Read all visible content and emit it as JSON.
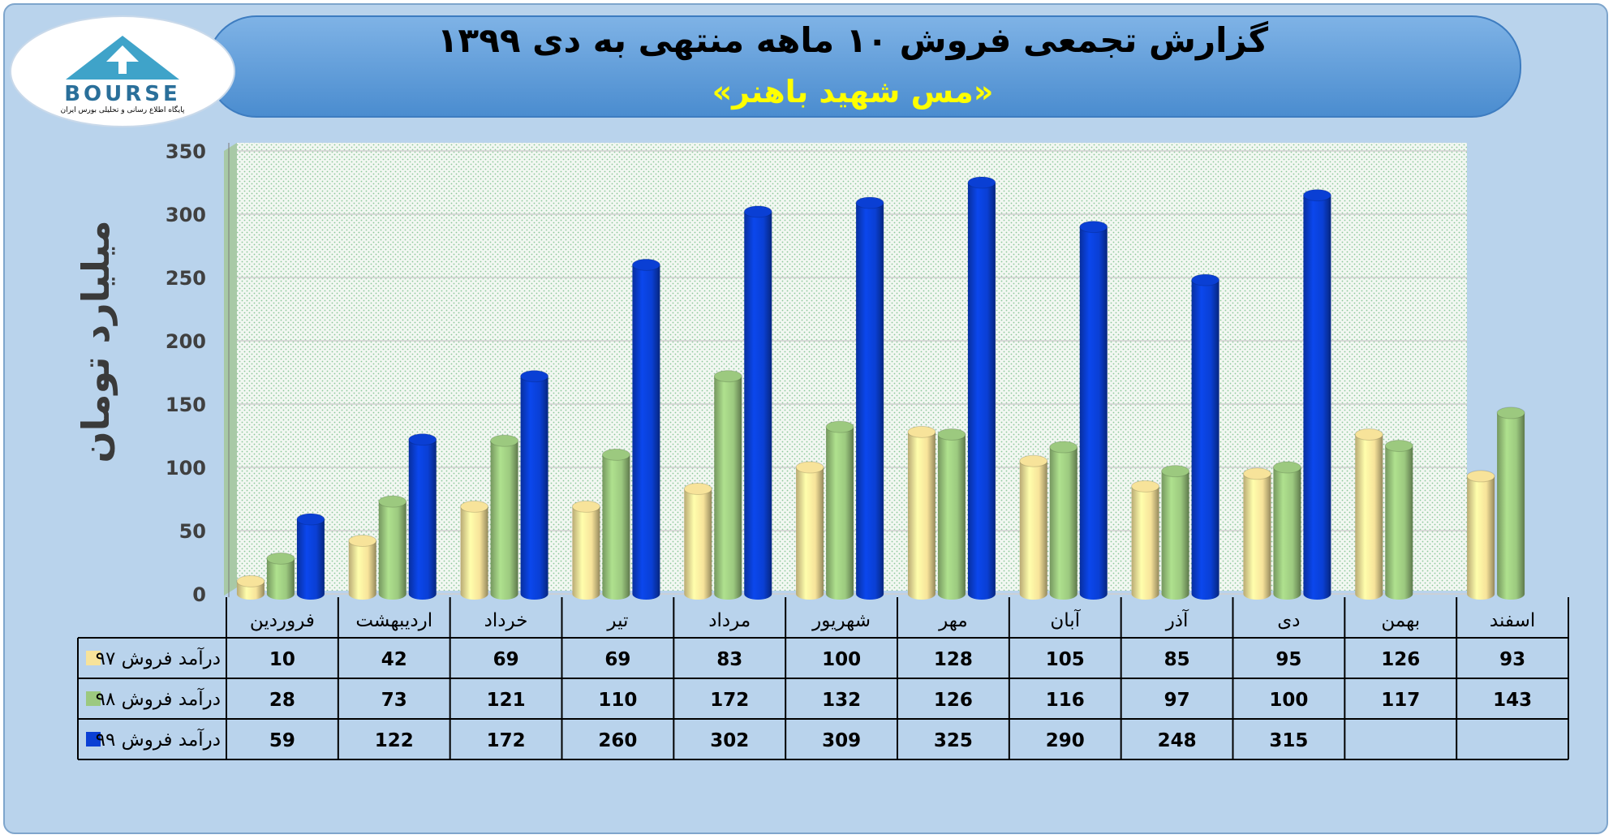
{
  "logo": {
    "text": "BOURSE",
    "tagline": "پایگاه اطلاع رسانی و تحلیلی بورس ایران"
  },
  "colors": {
    "background": "#b9d3ec",
    "banner": "#5b9bd5",
    "title": "#000000",
    "subtitle": "#ffff00",
    "series_97": "#f7e39a",
    "series_98": "#9cc97f",
    "series_99": "#0a3fd4"
  },
  "chart_data": {
    "type": "bar",
    "title": "گزارش تجمعی فروش ۱۰ ماهه منتهی به دی ۱۳۹۹",
    "subtitle": "«مس شهید باهنر»",
    "ylabel": "میلیارد تومان",
    "ylim": [
      0,
      350
    ],
    "yticks": [
      0,
      50,
      100,
      150,
      200,
      250,
      300,
      350
    ],
    "grid": true,
    "direction": "rtl",
    "categories": [
      "فروردین",
      "اردیبهشت",
      "خرداد",
      "تیر",
      "مرداد",
      "شهریور",
      "مهر",
      "آبان",
      "آذر",
      "دی",
      "بهمن",
      "اسفند"
    ],
    "series": [
      {
        "name": "درآمد فروش ۹۷",
        "color": "#f7e39a",
        "values": [
          10,
          42,
          69,
          69,
          83,
          100,
          128,
          105,
          85,
          95,
          126,
          93
        ]
      },
      {
        "name": "درآمد فروش ۹۸",
        "color": "#9cc97f",
        "values": [
          28,
          73,
          121,
          110,
          172,
          132,
          126,
          116,
          97,
          100,
          117,
          143
        ]
      },
      {
        "name": "درآمد فروش ۹۹",
        "color": "#0a3fd4",
        "values": [
          59,
          122,
          172,
          260,
          302,
          309,
          325,
          290,
          248,
          315,
          null,
          null
        ]
      }
    ]
  }
}
